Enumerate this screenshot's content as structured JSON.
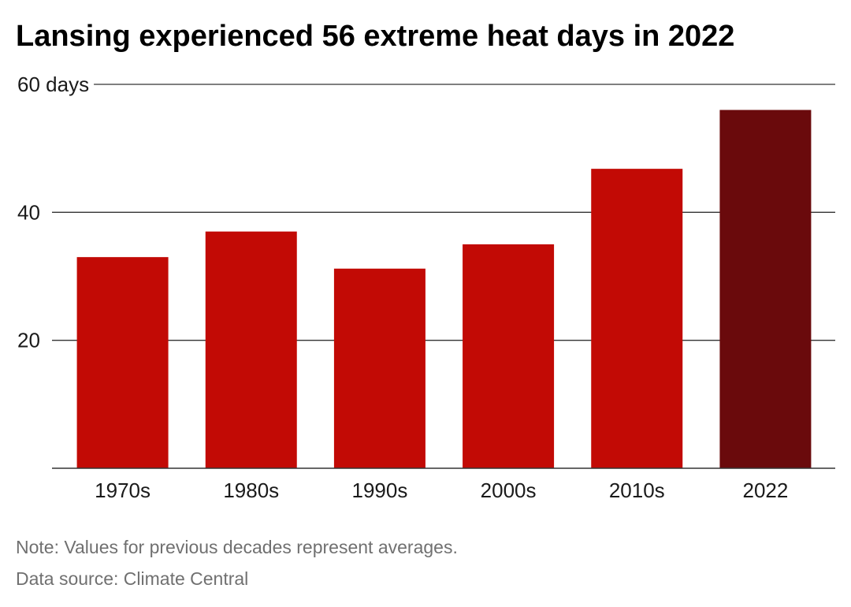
{
  "chart_data": {
    "type": "bar",
    "title": "Lansing experienced 56 extreme heat days in 2022",
    "categories": [
      "1970s",
      "1980s",
      "1990s",
      "2000s",
      "2010s",
      "2022"
    ],
    "values": [
      33,
      37,
      31.2,
      35,
      46.8,
      56
    ],
    "bar_colors": [
      "#c20a05",
      "#c20a05",
      "#c20a05",
      "#c20a05",
      "#c20a05",
      "#6a0a0c"
    ],
    "xlabel": "",
    "ylabel": "",
    "ylim": [
      0,
      60
    ],
    "yticks": [
      {
        "value": 60,
        "label": "60 days"
      },
      {
        "value": 40,
        "label": "40"
      },
      {
        "value": 20,
        "label": "20"
      }
    ],
    "grid": true,
    "legend": "none"
  },
  "footer": {
    "note": "Note: Values for previous decades represent averages.",
    "source": "Data source: Climate Central"
  },
  "colors": {
    "bar": "#c20a05",
    "highlight_bar": "#6a0a0c",
    "grid": "#333333",
    "footnote_text": "#707070"
  }
}
